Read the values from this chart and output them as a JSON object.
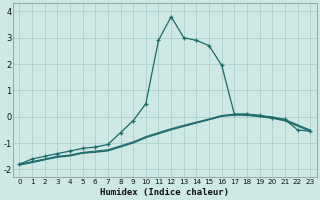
{
  "xlabel": "Humidex (Indice chaleur)",
  "xlim": [
    -0.5,
    23.5
  ],
  "ylim": [
    -2.3,
    4.3
  ],
  "xticks": [
    0,
    1,
    2,
    3,
    4,
    5,
    6,
    7,
    8,
    9,
    10,
    11,
    12,
    13,
    14,
    15,
    16,
    17,
    18,
    19,
    20,
    21,
    22,
    23
  ],
  "yticks": [
    -2,
    -1,
    0,
    1,
    2,
    3,
    4
  ],
  "bg_color": "#cde8e5",
  "grid_color": "#aecfcd",
  "line_color": "#1a6b6a",
  "line1_x": [
    0,
    1,
    2,
    3,
    4,
    5,
    6,
    7,
    8,
    9,
    10,
    11,
    12,
    13,
    14,
    15,
    16,
    17,
    18,
    19,
    20,
    21,
    22,
    23
  ],
  "line1_y": [
    -1.8,
    -1.6,
    -1.5,
    -1.4,
    -1.3,
    -1.2,
    -1.15,
    -1.05,
    -0.6,
    -0.15,
    0.5,
    2.9,
    3.8,
    3.0,
    2.9,
    2.7,
    1.95,
    0.1,
    0.1,
    0.05,
    -0.05,
    -0.1,
    -0.5,
    -0.55
  ],
  "line2_x": [
    0,
    1,
    2,
    3,
    4,
    5,
    6,
    7,
    8,
    9,
    10,
    11,
    12,
    13,
    14,
    15,
    16,
    17,
    18,
    19,
    20,
    21,
    22,
    23
  ],
  "line2_y": [
    -1.8,
    -1.7,
    -1.6,
    -1.5,
    -1.45,
    -1.35,
    -1.3,
    -1.25,
    -1.1,
    -0.95,
    -0.75,
    -0.6,
    -0.45,
    -0.32,
    -0.2,
    -0.08,
    0.05,
    0.1,
    0.1,
    0.05,
    0.0,
    -0.1,
    -0.3,
    -0.5
  ],
  "line3_x": [
    0,
    1,
    2,
    3,
    4,
    5,
    6,
    7,
    8,
    9,
    10,
    11,
    12,
    13,
    14,
    15,
    16,
    17,
    18,
    19,
    20,
    21,
    22,
    23
  ],
  "line3_y": [
    -1.82,
    -1.72,
    -1.62,
    -1.52,
    -1.47,
    -1.37,
    -1.33,
    -1.28,
    -1.13,
    -0.98,
    -0.78,
    -0.63,
    -0.48,
    -0.35,
    -0.22,
    -0.1,
    0.03,
    0.08,
    0.07,
    0.02,
    -0.03,
    -0.13,
    -0.33,
    -0.52
  ],
  "line4_x": [
    0,
    1,
    2,
    3,
    4,
    5,
    6,
    7,
    8,
    9,
    10,
    11,
    12,
    13,
    14,
    15,
    16,
    17,
    18,
    19,
    20,
    21,
    22,
    23
  ],
  "line4_y": [
    -1.84,
    -1.74,
    -1.64,
    -1.54,
    -1.49,
    -1.39,
    -1.35,
    -1.3,
    -1.15,
    -1.0,
    -0.8,
    -0.65,
    -0.5,
    -0.37,
    -0.24,
    -0.12,
    0.01,
    0.06,
    0.05,
    0.0,
    -0.06,
    -0.16,
    -0.36,
    -0.55
  ]
}
